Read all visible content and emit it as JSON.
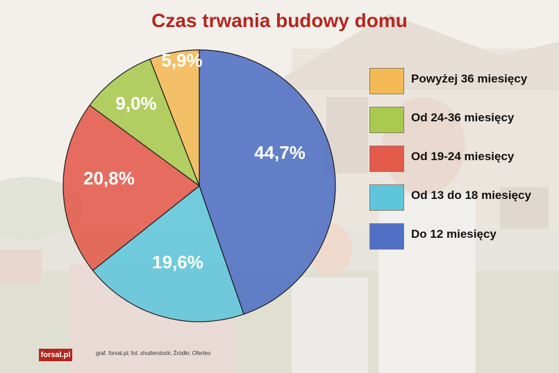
{
  "title": "Czas trwania budowy domu",
  "chart_data": {
    "type": "pie",
    "title": "Czas trwania budowy domu",
    "legend_position": "right",
    "slices": [
      {
        "label": "Do 12 miesięcy",
        "value": 44.7,
        "display": "44,7%",
        "color": "#4f70c4"
      },
      {
        "label": "Od 13 do 18 miesięcy",
        "value": 19.6,
        "display": "19,6%",
        "color": "#5ec6db"
      },
      {
        "label": "Od 19-24 miesięcy",
        "value": 20.8,
        "display": "20,8%",
        "color": "#e35a4a"
      },
      {
        "label": "Od 24-36 miesięcy",
        "value": 9.0,
        "display": "9,0%",
        "color": "#a9c94f"
      },
      {
        "label": "Powyżej 36 miesięcy",
        "value": 5.9,
        "display": "5,9%",
        "color": "#f2b955"
      }
    ],
    "legend_order": [
      4,
      3,
      2,
      1,
      0
    ]
  },
  "footer": {
    "logo": "forsal.pl",
    "credits": "graf. forsal.pl; fot. shutterstock;  Źródło: Oferteo"
  }
}
